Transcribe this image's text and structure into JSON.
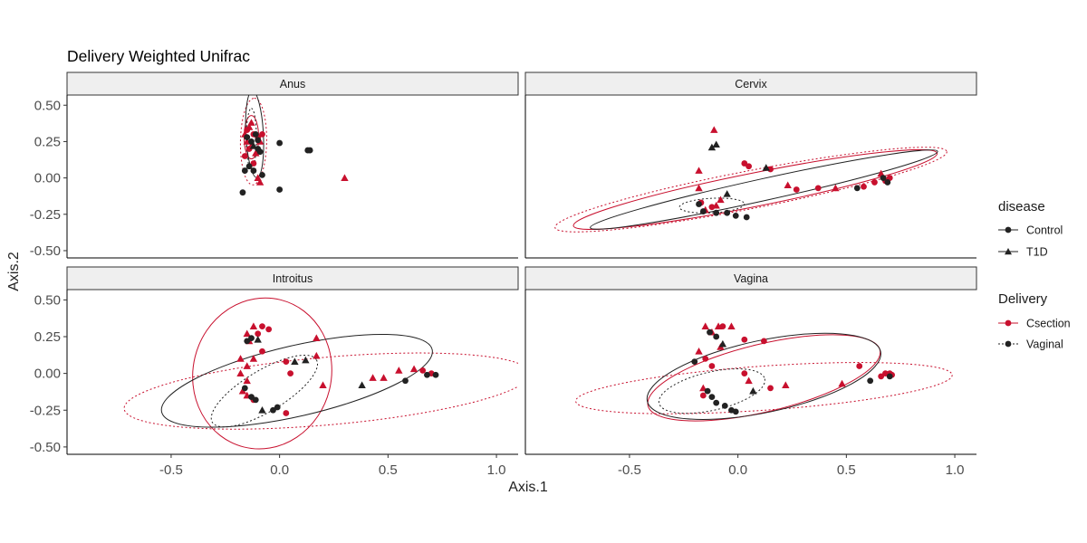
{
  "chart_data": {
    "type": "scatter",
    "title": "Delivery Weighted Unifrac",
    "xlabel": "Axis.1",
    "ylabel": "Axis.2",
    "xlim": [
      -0.98,
      1.1
    ],
    "ylim": [
      -0.55,
      0.57
    ],
    "x_ticks": [
      -0.5,
      0.0,
      0.5,
      1.0
    ],
    "x_tick_labels": [
      "-0.5",
      "0.0",
      "0.5",
      "1.0"
    ],
    "y_ticks": [
      0.5,
      0.25,
      0.0,
      -0.25,
      -0.5
    ],
    "y_tick_labels": [
      "0.50",
      "0.25",
      "0.00",
      "-0.25",
      "-0.50"
    ],
    "grid": false,
    "legend_position": "right",
    "colors": {
      "Csection": "#c8102e",
      "Vaginal": "#222222"
    },
    "legends": [
      {
        "title": "disease",
        "entries": [
          {
            "label": "Control",
            "shape": "circle"
          },
          {
            "label": "T1D",
            "shape": "triangle"
          }
        ]
      },
      {
        "title": "Delivery",
        "entries": [
          {
            "label": "Csection",
            "line": "solid"
          },
          {
            "label": "Vaginal",
            "line": "dotted"
          }
        ]
      }
    ],
    "facets": [
      {
        "name": "Anus",
        "points": [
          [
            -0.16,
            0.3,
            "C",
            "T"
          ],
          [
            -0.15,
            0.25,
            "C",
            "T"
          ],
          [
            -0.14,
            0.35,
            "C",
            "T"
          ],
          [
            -0.13,
            0.22,
            "C",
            "T"
          ],
          [
            -0.12,
            0.3,
            "C",
            "C"
          ],
          [
            -0.14,
            0.2,
            "C",
            "C"
          ],
          [
            -0.16,
            0.15,
            "C",
            "C"
          ],
          [
            -0.1,
            0.28,
            "C",
            "C"
          ],
          [
            -0.09,
            0.25,
            "C",
            "T"
          ],
          [
            -0.12,
            0.1,
            "C",
            "C"
          ],
          [
            -0.1,
            0.0,
            "C",
            "T"
          ],
          [
            -0.09,
            -0.03,
            "C",
            "T"
          ],
          [
            -0.13,
            0.38,
            "C",
            "T"
          ],
          [
            -0.15,
            0.33,
            "C",
            "C"
          ],
          [
            -0.08,
            0.3,
            "C",
            "C"
          ],
          [
            -0.11,
            0.17,
            "C",
            "T"
          ],
          [
            0.3,
            0.0,
            "C",
            "T"
          ],
          [
            -0.15,
            0.28,
            "V",
            "C"
          ],
          [
            -0.13,
            0.25,
            "V",
            "C"
          ],
          [
            -0.12,
            0.22,
            "V",
            "T"
          ],
          [
            -0.11,
            0.3,
            "V",
            "C"
          ],
          [
            -0.1,
            0.2,
            "V",
            "C"
          ],
          [
            -0.14,
            0.08,
            "V",
            "C"
          ],
          [
            -0.16,
            0.05,
            "V",
            "C"
          ],
          [
            -0.12,
            0.05,
            "V",
            "C"
          ],
          [
            -0.08,
            0.02,
            "V",
            "C"
          ],
          [
            -0.1,
            0.26,
            "V",
            "C"
          ],
          [
            -0.09,
            0.18,
            "V",
            "C"
          ],
          [
            0.0,
            0.24,
            "V",
            "C"
          ],
          [
            0.13,
            0.19,
            "V",
            "C"
          ],
          [
            0.14,
            0.19,
            "V",
            "C"
          ],
          [
            -0.17,
            -0.1,
            "V",
            "C"
          ],
          [
            0.0,
            -0.08,
            "V",
            "C"
          ]
        ],
        "ellipses": [
          [
            -0.13,
            0.28,
            0.1,
            0.05,
            90,
            "C",
            "solid"
          ],
          [
            -0.12,
            0.25,
            0.2,
            0.09,
            89,
            "C",
            "dotted"
          ],
          [
            -0.115,
            0.3,
            0.2,
            0.06,
            93,
            "V",
            "solid"
          ],
          [
            -0.13,
            0.27,
            0.14,
            0.035,
            90,
            "V",
            "dotted"
          ]
        ]
      },
      {
        "name": "Cervix",
        "points": [
          [
            -0.11,
            0.33,
            "C",
            "T"
          ],
          [
            -0.18,
            0.05,
            "C",
            "T"
          ],
          [
            -0.18,
            -0.07,
            "C",
            "T"
          ],
          [
            -0.17,
            -0.17,
            "C",
            "C"
          ],
          [
            -0.15,
            -0.22,
            "C",
            "T"
          ],
          [
            -0.12,
            -0.2,
            "C",
            "C"
          ],
          [
            -0.1,
            -0.19,
            "C",
            "T"
          ],
          [
            -0.08,
            -0.15,
            "C",
            "T"
          ],
          [
            0.03,
            0.1,
            "C",
            "C"
          ],
          [
            0.05,
            0.08,
            "C",
            "C"
          ],
          [
            0.15,
            0.06,
            "C",
            "C"
          ],
          [
            0.23,
            -0.05,
            "C",
            "T"
          ],
          [
            0.27,
            -0.08,
            "C",
            "C"
          ],
          [
            0.37,
            -0.07,
            "C",
            "C"
          ],
          [
            0.45,
            -0.07,
            "C",
            "T"
          ],
          [
            0.58,
            -0.06,
            "C",
            "C"
          ],
          [
            0.63,
            -0.03,
            "C",
            "C"
          ],
          [
            0.66,
            0.03,
            "C",
            "T"
          ],
          [
            0.68,
            -0.02,
            "C",
            "C"
          ],
          [
            0.7,
            0.0,
            "C",
            "C"
          ],
          [
            -0.12,
            0.21,
            "V",
            "T"
          ],
          [
            -0.1,
            0.23,
            "V",
            "T"
          ],
          [
            0.13,
            0.07,
            "V",
            "T"
          ],
          [
            -0.18,
            -0.18,
            "V",
            "C"
          ],
          [
            -0.16,
            -0.23,
            "V",
            "C"
          ],
          [
            -0.1,
            -0.24,
            "V",
            "C"
          ],
          [
            -0.05,
            -0.24,
            "V",
            "C"
          ],
          [
            -0.01,
            -0.26,
            "V",
            "C"
          ],
          [
            0.04,
            -0.27,
            "V",
            "C"
          ],
          [
            -0.05,
            -0.11,
            "V",
            "T"
          ],
          [
            0.55,
            -0.07,
            "V",
            "C"
          ],
          [
            0.67,
            0.0,
            "V",
            "C"
          ],
          [
            0.69,
            -0.03,
            "V",
            "C"
          ]
        ],
        "ellipses": [
          [
            0.08,
            -0.08,
            0.855,
            0.115,
            11.3,
            "C",
            "solid"
          ],
          [
            0.06,
            -0.08,
            0.92,
            0.13,
            11,
            "C",
            "dotted"
          ],
          [
            0.12,
            -0.08,
            0.82,
            0.075,
            12.4,
            "V",
            "solid"
          ],
          [
            -0.12,
            -0.19,
            0.15,
            0.05,
            3,
            "V",
            "dotted"
          ]
        ]
      },
      {
        "name": "Introitus",
        "points": [
          [
            -0.12,
            0.32,
            "C",
            "T"
          ],
          [
            -0.15,
            0.27,
            "C",
            "T"
          ],
          [
            -0.14,
            0.22,
            "C",
            "T"
          ],
          [
            -0.1,
            0.27,
            "C",
            "C"
          ],
          [
            -0.08,
            0.32,
            "C",
            "C"
          ],
          [
            -0.05,
            0.3,
            "C",
            "C"
          ],
          [
            -0.18,
            0.1,
            "C",
            "T"
          ],
          [
            -0.18,
            0.0,
            "C",
            "T"
          ],
          [
            -0.15,
            0.05,
            "C",
            "T"
          ],
          [
            -0.12,
            0.1,
            "C",
            "T"
          ],
          [
            -0.08,
            0.15,
            "C",
            "C"
          ],
          [
            -0.15,
            -0.05,
            "C",
            "T"
          ],
          [
            -0.17,
            -0.12,
            "C",
            "T"
          ],
          [
            -0.15,
            -0.15,
            "C",
            "T"
          ],
          [
            -0.12,
            -0.18,
            "C",
            "C"
          ],
          [
            0.03,
            -0.27,
            "C",
            "C"
          ],
          [
            0.03,
            0.08,
            "C",
            "C"
          ],
          [
            0.05,
            0.0,
            "C",
            "C"
          ],
          [
            0.17,
            0.12,
            "C",
            "T"
          ],
          [
            0.2,
            -0.08,
            "C",
            "T"
          ],
          [
            0.17,
            0.24,
            "C",
            "T"
          ],
          [
            0.43,
            -0.03,
            "C",
            "T"
          ],
          [
            0.48,
            -0.03,
            "C",
            "T"
          ],
          [
            0.55,
            0.02,
            "C",
            "T"
          ],
          [
            0.62,
            0.03,
            "C",
            "T"
          ],
          [
            0.66,
            0.02,
            "C",
            "C"
          ],
          [
            0.7,
            0.0,
            "C",
            "C"
          ],
          [
            -0.15,
            0.22,
            "V",
            "C"
          ],
          [
            -0.13,
            0.24,
            "V",
            "C"
          ],
          [
            -0.1,
            0.23,
            "V",
            "T"
          ],
          [
            -0.16,
            -0.1,
            "V",
            "C"
          ],
          [
            -0.13,
            -0.16,
            "V",
            "C"
          ],
          [
            -0.11,
            -0.18,
            "V",
            "C"
          ],
          [
            -0.08,
            -0.25,
            "V",
            "T"
          ],
          [
            -0.03,
            -0.25,
            "V",
            "C"
          ],
          [
            -0.01,
            -0.23,
            "V",
            "C"
          ],
          [
            0.07,
            0.08,
            "V",
            "T"
          ],
          [
            0.12,
            0.09,
            "V",
            "T"
          ],
          [
            0.38,
            -0.08,
            "V",
            "T"
          ],
          [
            0.58,
            -0.05,
            "V",
            "C"
          ],
          [
            0.68,
            -0.01,
            "V",
            "C"
          ],
          [
            0.72,
            -0.01,
            "V",
            "C"
          ]
        ],
        "ellipses": [
          [
            -0.08,
            0.0,
            0.35,
            0.47,
            76,
            "C",
            "solid"
          ],
          [
            0.22,
            -0.12,
            0.94,
            0.23,
            5,
            "C",
            "dotted"
          ],
          [
            0.08,
            -0.05,
            0.64,
            0.24,
            13,
            "V",
            "solid"
          ],
          [
            -0.07,
            -0.12,
            0.28,
            0.14,
            31,
            "V",
            "dotted"
          ]
        ]
      },
      {
        "name": "Vagina",
        "points": [
          [
            -0.15,
            0.32,
            "C",
            "T"
          ],
          [
            -0.12,
            0.28,
            "C",
            "T"
          ],
          [
            -0.09,
            0.32,
            "C",
            "T"
          ],
          [
            -0.07,
            0.32,
            "C",
            "C"
          ],
          [
            -0.03,
            0.32,
            "C",
            "T"
          ],
          [
            0.03,
            0.23,
            "C",
            "C"
          ],
          [
            -0.18,
            0.15,
            "C",
            "T"
          ],
          [
            -0.15,
            0.1,
            "C",
            "C"
          ],
          [
            -0.12,
            0.05,
            "C",
            "C"
          ],
          [
            -0.08,
            0.18,
            "C",
            "T"
          ],
          [
            -0.16,
            -0.1,
            "C",
            "T"
          ],
          [
            -0.16,
            -0.15,
            "C",
            "C"
          ],
          [
            0.03,
            0.0,
            "C",
            "C"
          ],
          [
            0.05,
            -0.05,
            "C",
            "T"
          ],
          [
            0.15,
            -0.1,
            "C",
            "C"
          ],
          [
            0.12,
            0.22,
            "C",
            "C"
          ],
          [
            0.22,
            -0.08,
            "C",
            "T"
          ],
          [
            0.48,
            -0.07,
            "C",
            "T"
          ],
          [
            0.56,
            0.05,
            "C",
            "C"
          ],
          [
            0.66,
            -0.02,
            "C",
            "C"
          ],
          [
            0.68,
            0.0,
            "C",
            "C"
          ],
          [
            0.7,
            0.0,
            "C",
            "C"
          ],
          [
            0.71,
            -0.01,
            "C",
            "C"
          ],
          [
            -0.13,
            0.28,
            "V",
            "C"
          ],
          [
            -0.1,
            0.25,
            "V",
            "C"
          ],
          [
            -0.07,
            0.2,
            "V",
            "T"
          ],
          [
            -0.2,
            0.08,
            "V",
            "C"
          ],
          [
            -0.14,
            -0.12,
            "V",
            "C"
          ],
          [
            -0.12,
            -0.16,
            "V",
            "C"
          ],
          [
            -0.1,
            -0.2,
            "V",
            "C"
          ],
          [
            -0.06,
            -0.22,
            "V",
            "C"
          ],
          [
            -0.01,
            -0.26,
            "V",
            "C"
          ],
          [
            -0.03,
            -0.25,
            "V",
            "C"
          ],
          [
            0.07,
            -0.12,
            "V",
            "T"
          ],
          [
            0.61,
            -0.05,
            "V",
            "C"
          ],
          [
            0.7,
            -0.02,
            "V",
            "C"
          ]
        ],
        "ellipses": [
          [
            0.12,
            -0.03,
            0.55,
            0.23,
            13.5,
            "C",
            "solid"
          ],
          [
            0.12,
            -0.1,
            0.87,
            0.15,
            4,
            "C",
            "dotted"
          ],
          [
            0.12,
            -0.02,
            0.55,
            0.245,
            12,
            "V",
            "solid"
          ],
          [
            -0.12,
            -0.12,
            0.25,
            0.13,
            13,
            "V",
            "dotted"
          ]
        ]
      }
    ]
  }
}
